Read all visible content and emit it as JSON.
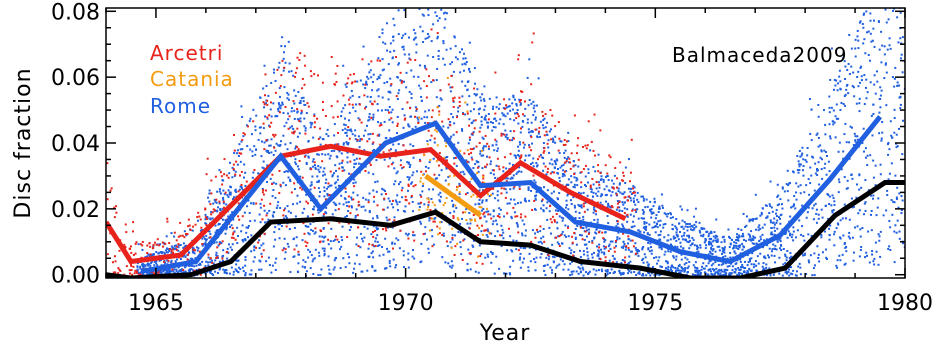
{
  "chart_data": {
    "type": "scatter",
    "xlabel": "Year",
    "ylabel": "Disc fraction",
    "xlim": [
      1964,
      1980
    ],
    "ylim": [
      -0.001,
      0.081
    ],
    "xticks": [
      1965,
      1970,
      1975,
      1980
    ],
    "xtick_labels": [
      "1965",
      "1970",
      "1975",
      "1980"
    ],
    "yticks": [
      0.0,
      0.02,
      0.04,
      0.06,
      0.08
    ],
    "ytick_labels": [
      "0.00",
      "0.02",
      "0.04",
      "0.06",
      "0.08"
    ],
    "annotation": "Balmaceda2009",
    "series": [
      {
        "name": "Arcetri",
        "color": "#e8231c",
        "points_style": "scatter+line",
        "line": {
          "x": [
            1964.0,
            1964.5,
            1965.5,
            1967.5,
            1968.5,
            1969.5,
            1970.5,
            1971.5,
            1972.3,
            1973.3,
            1974.4
          ],
          "y": [
            0.016,
            0.004,
            0.006,
            0.036,
            0.039,
            0.036,
            0.038,
            0.024,
            0.034,
            0.025,
            0.017
          ]
        }
      },
      {
        "name": "Catania",
        "color": "#f39c12",
        "points_style": "scatter+line",
        "line": {
          "x": [
            1970.4,
            1971.5
          ],
          "y": [
            0.03,
            0.018
          ]
        }
      },
      {
        "name": "Rome",
        "color": "#1f5fe0",
        "points_style": "scatter+line",
        "line": {
          "x": [
            1964.7,
            1965.8,
            1967.5,
            1968.3,
            1969.6,
            1970.6,
            1971.5,
            1972.5,
            1973.4,
            1974.5,
            1975.5,
            1976.5,
            1977.5,
            1978.5,
            1979.5
          ],
          "y": [
            0.001,
            0.004,
            0.036,
            0.02,
            0.04,
            0.046,
            0.027,
            0.028,
            0.016,
            0.013,
            0.007,
            0.004,
            0.012,
            0.029,
            0.048
          ]
        }
      },
      {
        "name": "",
        "color": "#000000",
        "points_style": "line",
        "line": {
          "x": [
            1964.0,
            1964.5,
            1965.7,
            1966.5,
            1967.3,
            1968.5,
            1969.7,
            1970.6,
            1971.5,
            1972.5,
            1973.5,
            1974.7,
            1975.7,
            1976.7,
            1977.6,
            1978.6,
            1979.6,
            1980.0
          ],
          "y": [
            0.0,
            -0.001,
            0.0,
            0.004,
            0.016,
            0.017,
            0.015,
            0.019,
            0.01,
            0.009,
            0.004,
            0.002,
            -0.001,
            -0.001,
            0.002,
            0.018,
            0.028,
            0.028
          ]
        }
      }
    ],
    "grid": false,
    "legend_position": "top-left"
  }
}
